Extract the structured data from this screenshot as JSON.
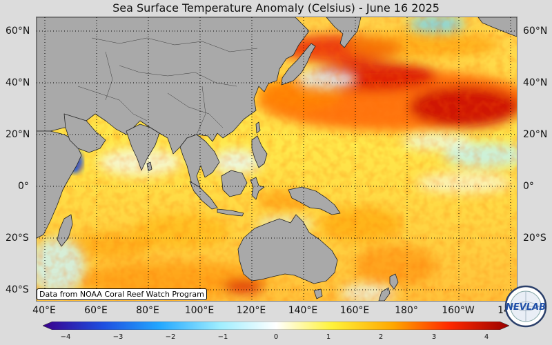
{
  "title": "Sea Surface Temperature Anomaly (Celsius) - June 16 2025",
  "credit": "Data from NOAA Coral Reef Watch Program",
  "logo_text": "NEVLAB",
  "lat_labels": [
    "60°N",
    "40°N",
    "20°N",
    "0°",
    "20°S",
    "40°S"
  ],
  "lon_labels": [
    "40°E",
    "60°E",
    "80°E",
    "100°E",
    "120°E",
    "140°E",
    "160°E",
    "180°",
    "160°W",
    "14"
  ],
  "colorbar": {
    "ticks": [
      "−4",
      "−3",
      "−2",
      "−1",
      "0",
      "1",
      "2",
      "3",
      "4"
    ],
    "range": [
      -4,
      4
    ],
    "stops": [
      "#3a008c",
      "#1d4fe0",
      "#23a7ff",
      "#9feeff",
      "#ffffff",
      "#fff23a",
      "#ffa800",
      "#ff2a00",
      "#9a0000"
    ]
  },
  "colors": {
    "land": "#a9a9a9",
    "background": "#dcdcdc"
  }
}
